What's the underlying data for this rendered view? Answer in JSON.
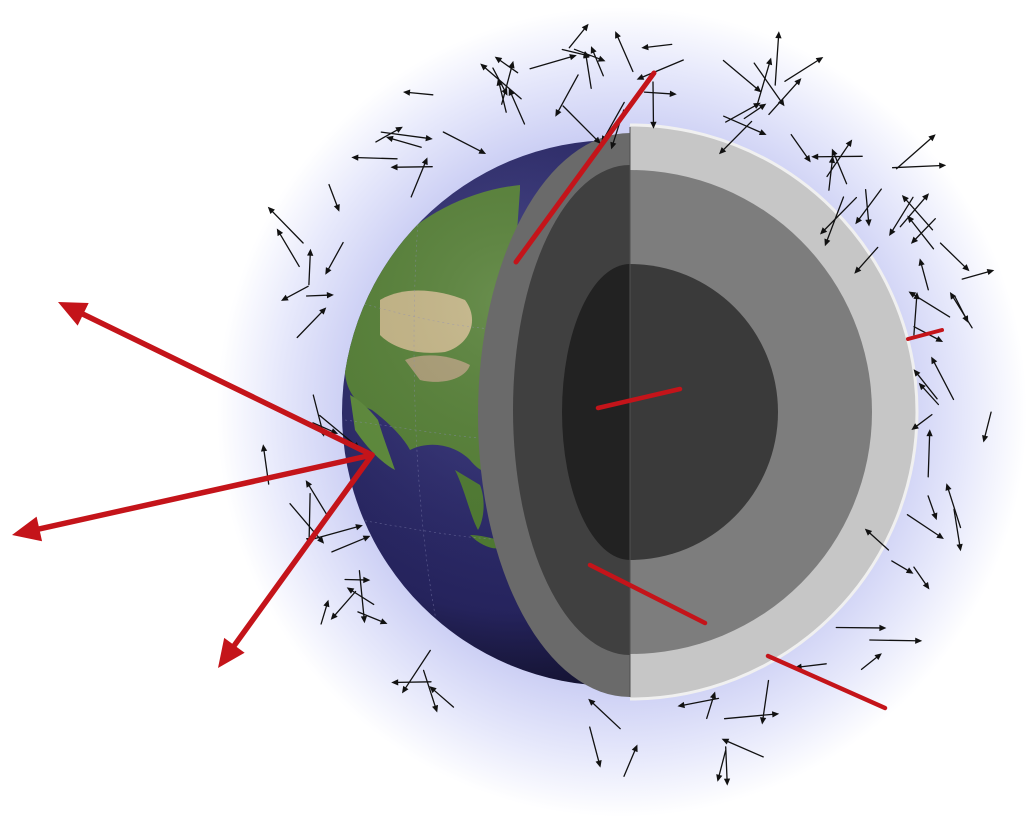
{
  "figure": {
    "subject": "cutaway-earth-with-radiating-arrows",
    "colors": {
      "background": "#ffffff",
      "halo_inner": "#aab0ea",
      "halo_outer": "#ffffff",
      "globe_ocean": "#2c2a66",
      "globe_land": "#5b8a3a",
      "globe_land_dry": "#c7b98c",
      "crust": "#6a6a6a",
      "mantle_outer": "#3d3d3d",
      "mantle_inner": "#303030",
      "core": "#1e1e1e",
      "back_shell": "#c4c4c4",
      "back_mantle": "#7d7d7d",
      "back_core": "#3a3a3a",
      "arrow_red": "#c4141a",
      "arrow_black": "#111111"
    },
    "icons": [
      "red-arrow",
      "black-arrow",
      "globe",
      "earth-interior"
    ]
  }
}
